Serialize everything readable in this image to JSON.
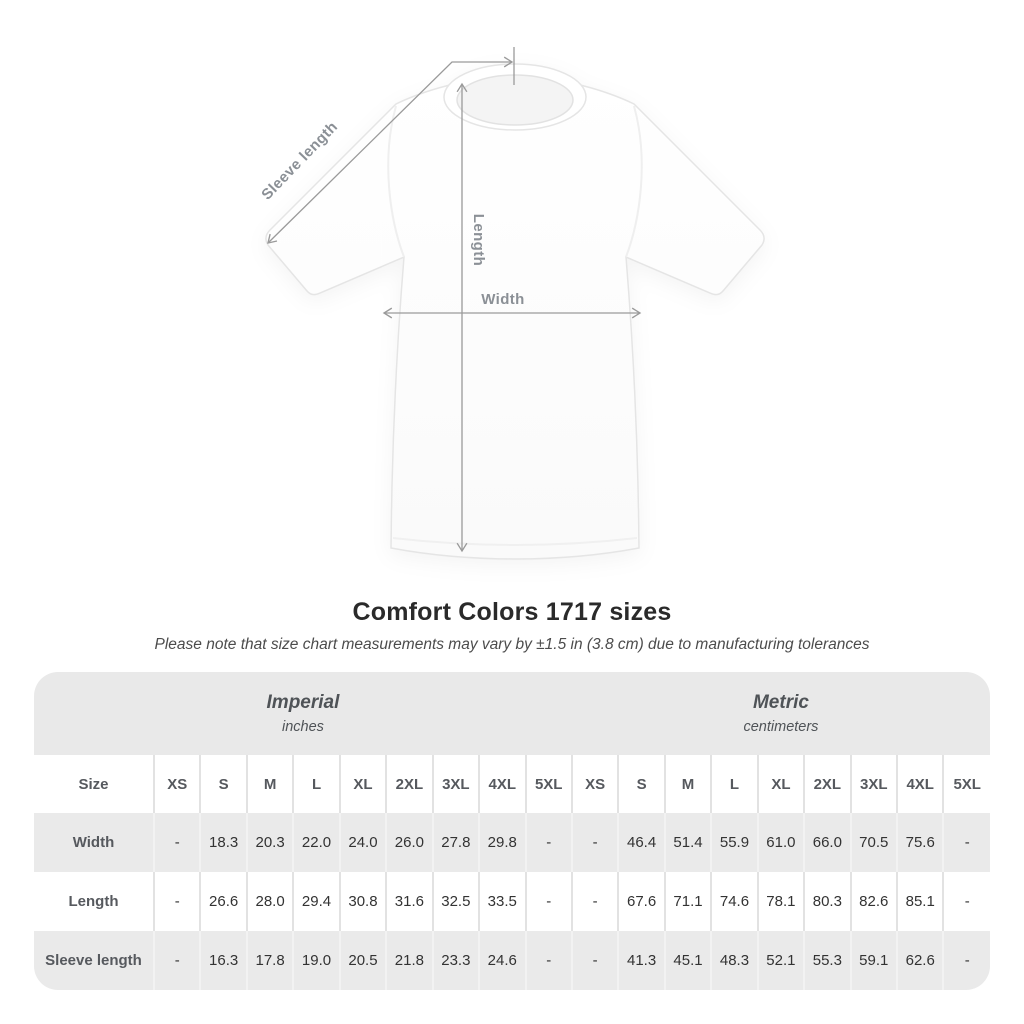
{
  "diagram": {
    "labels": {
      "sleeve": "Sleeve length",
      "length": "Length",
      "width": "Width"
    }
  },
  "heading": {
    "title": "Comfort Colors 1717 sizes",
    "note": "Please note that size chart measurements may vary by ±1.5 in (3.8 cm) due to manufacturing tolerances"
  },
  "table": {
    "size_header": "Size",
    "unit_groups": [
      {
        "label": "Imperial",
        "sublabel": "inches"
      },
      {
        "label": "Metric",
        "sublabel": "centimeters"
      }
    ],
    "sizes": [
      "XS",
      "S",
      "M",
      "L",
      "XL",
      "2XL",
      "3XL",
      "4XL",
      "5XL"
    ],
    "rows": [
      {
        "label": "Width",
        "imperial": [
          "-",
          "18.3",
          "20.3",
          "22.0",
          "24.0",
          "26.0",
          "27.8",
          "29.8",
          "-"
        ],
        "metric": [
          "-",
          "46.4",
          "51.4",
          "55.9",
          "61.0",
          "66.0",
          "70.5",
          "75.6",
          "-"
        ]
      },
      {
        "label": "Length",
        "imperial": [
          "-",
          "26.6",
          "28.0",
          "29.4",
          "30.8",
          "31.6",
          "32.5",
          "33.5",
          "-"
        ],
        "metric": [
          "-",
          "67.6",
          "71.1",
          "74.6",
          "78.1",
          "80.3",
          "82.6",
          "85.1",
          "-"
        ]
      },
      {
        "label": "Sleeve length",
        "imperial": [
          "-",
          "16.3",
          "17.8",
          "19.0",
          "20.5",
          "21.8",
          "23.3",
          "24.6",
          "-"
        ],
        "metric": [
          "-",
          "41.3",
          "45.1",
          "48.3",
          "52.1",
          "55.3",
          "59.1",
          "62.6",
          "-"
        ]
      }
    ]
  },
  "colors": {
    "band_gray": "#e9e9e9",
    "row_gray": "#eaeaea",
    "annotation_line": "#9a9a9a",
    "annotation_text": "#8b9096",
    "header_text": "#56595e",
    "value_text": "#333333"
  }
}
